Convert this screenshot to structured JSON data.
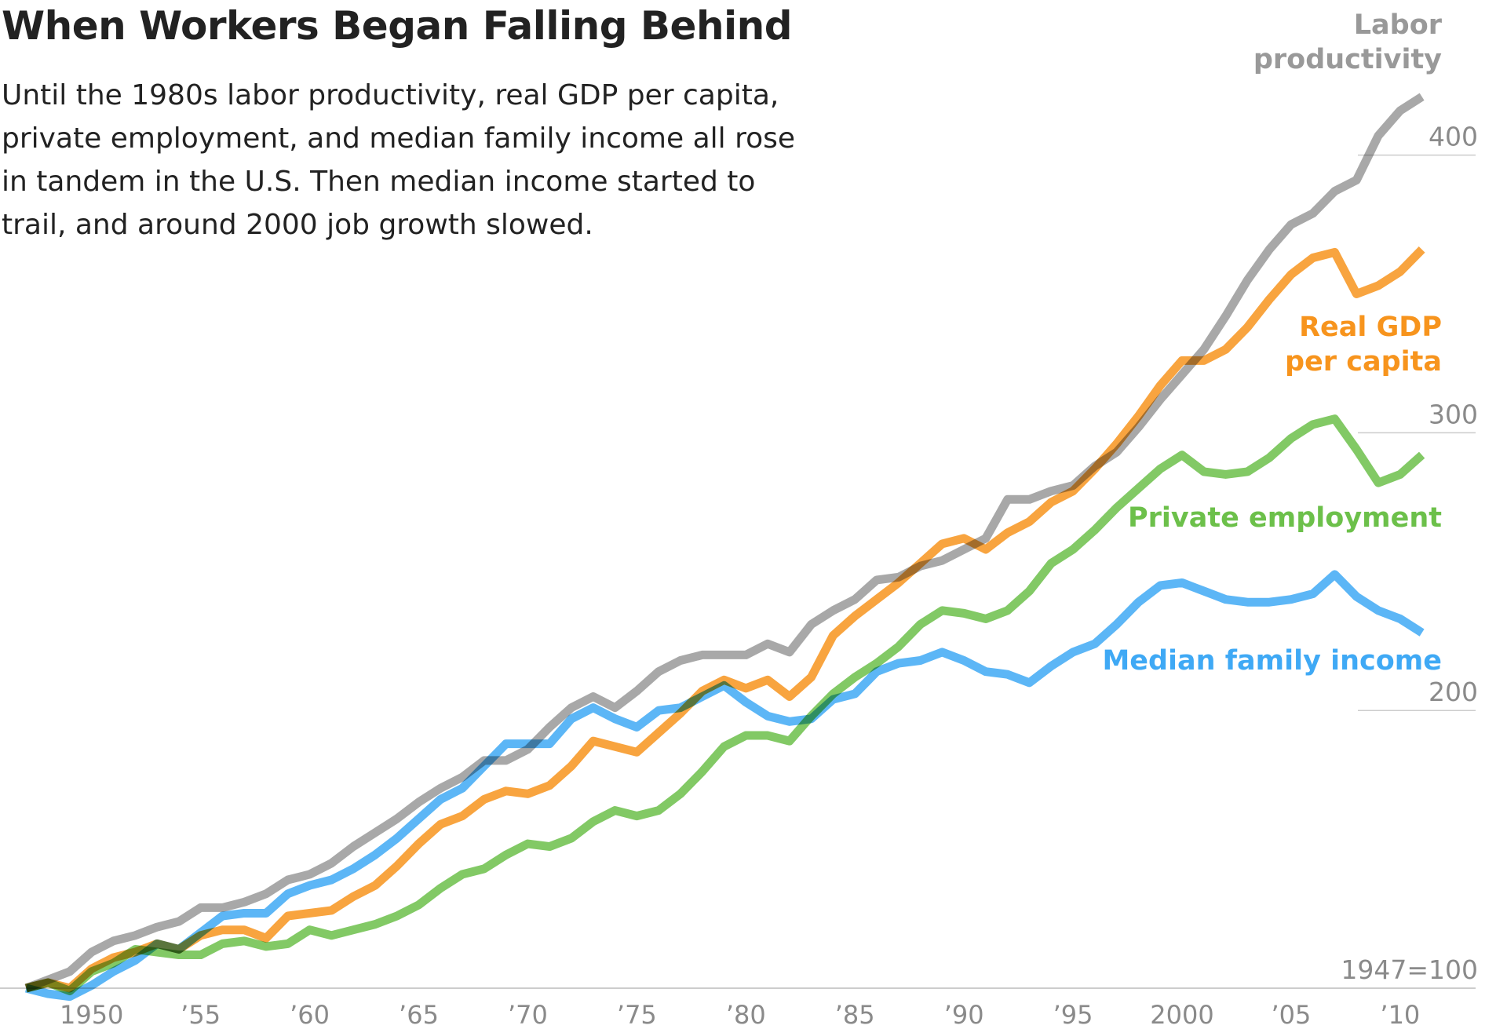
{
  "chart_data": {
    "type": "line",
    "title": "When Workers Began Falling Behind",
    "subtitle": "Until the 1980s labor productivity, real GDP per capita, private employment, and median family income all rose in tandem in the U.S. Then median income started to trail, and around 2000 job growth slowed.",
    "x": [
      1947,
      1948,
      1949,
      1950,
      1951,
      1952,
      1953,
      1954,
      1955,
      1956,
      1957,
      1958,
      1959,
      1960,
      1961,
      1962,
      1963,
      1964,
      1965,
      1966,
      1967,
      1968,
      1969,
      1970,
      1971,
      1972,
      1973,
      1974,
      1975,
      1976,
      1977,
      1978,
      1979,
      1980,
      1981,
      1982,
      1983,
      1984,
      1985,
      1986,
      1987,
      1988,
      1989,
      1990,
      1991,
      1992,
      1993,
      1994,
      1995,
      1996,
      1997,
      1998,
      1999,
      2000,
      2001,
      2002,
      2003,
      2004,
      2005,
      2006,
      2007,
      2008,
      2009,
      2010,
      2011
    ],
    "series": [
      {
        "name": "Labor productivity",
        "color": "#999999",
        "values": [
          100,
          103,
          106,
          113,
          117,
          119,
          122,
          124,
          129,
          129,
          131,
          134,
          139,
          141,
          145,
          151,
          156,
          161,
          167,
          172,
          176,
          182,
          182,
          186,
          194,
          201,
          205,
          201,
          207,
          214,
          218,
          220,
          220,
          220,
          224,
          221,
          231,
          236,
          240,
          247,
          248,
          252,
          254,
          258,
          262,
          276,
          276,
          279,
          281,
          288,
          293,
          302,
          312,
          321,
          330,
          342,
          355,
          366,
          375,
          379,
          387,
          391,
          407,
          416,
          421
        ]
      },
      {
        "name": "Real GDP per capita",
        "color": "#f7941d",
        "values": [
          100,
          102,
          100,
          107,
          111,
          113,
          116,
          114,
          119,
          121,
          121,
          118,
          126,
          127,
          128,
          133,
          137,
          144,
          152,
          159,
          162,
          168,
          171,
          170,
          173,
          180,
          189,
          187,
          185,
          192,
          199,
          207,
          211,
          208,
          211,
          205,
          212,
          227,
          234,
          240,
          246,
          253,
          260,
          262,
          258,
          264,
          268,
          275,
          279,
          287,
          296,
          306,
          317,
          326,
          326,
          330,
          338,
          348,
          357,
          363,
          365,
          350,
          353,
          358,
          366
        ]
      },
      {
        "name": "Private employment",
        "color": "#6cc04a",
        "values": [
          100,
          102,
          99,
          106,
          109,
          114,
          113,
          112,
          112,
          116,
          117,
          115,
          116,
          121,
          119,
          121,
          123,
          126,
          130,
          136,
          141,
          143,
          148,
          152,
          151,
          154,
          160,
          164,
          162,
          164,
          170,
          178,
          187,
          191,
          191,
          189,
          198,
          206,
          212,
          217,
          223,
          231,
          236,
          235,
          233,
          236,
          243,
          253,
          258,
          265,
          273,
          280,
          287,
          292,
          286,
          285,
          286,
          291,
          298,
          303,
          305,
          294,
          282,
          285,
          292
        ]
      },
      {
        "name": "Median family income",
        "color": "#3fa9f5",
        "values": [
          100,
          98,
          97,
          101,
          106,
          110,
          116,
          114,
          120,
          126,
          127,
          127,
          134,
          137,
          139,
          143,
          148,
          154,
          161,
          168,
          172,
          180,
          188,
          188,
          188,
          197,
          201,
          197,
          194,
          200,
          201,
          205,
          209,
          203,
          198,
          196,
          197,
          204,
          206,
          214,
          217,
          218,
          221,
          218,
          214,
          213,
          210,
          216,
          221,
          224,
          231,
          239,
          245,
          246,
          243,
          240,
          239,
          239,
          240,
          242,
          249,
          241,
          236,
          233,
          228
        ]
      }
    ],
    "xlim": [
      1945.8,
      2014.9
    ],
    "xticks": [
      1950,
      {
        "value": 1955,
        "label": "’55"
      },
      {
        "value": 1960,
        "label": "’60"
      },
      {
        "value": 1965,
        "label": "’65"
      },
      {
        "value": 1970,
        "label": "’70"
      },
      {
        "value": 1975,
        "label": "’75"
      },
      {
        "value": 1980,
        "label": "’80"
      },
      {
        "value": 1985,
        "label": "’85"
      },
      {
        "value": 1990,
        "label": "’90"
      },
      {
        "value": 1995,
        "label": "’95"
      },
      2000,
      {
        "value": 2005,
        "label": "’05"
      },
      {
        "value": 2010,
        "label": "’10"
      }
    ],
    "ylim": [
      100,
      455
    ],
    "yticks": [
      {
        "value": 100,
        "label": "1947=100"
      },
      200,
      300,
      400
    ],
    "grid": true
  }
}
